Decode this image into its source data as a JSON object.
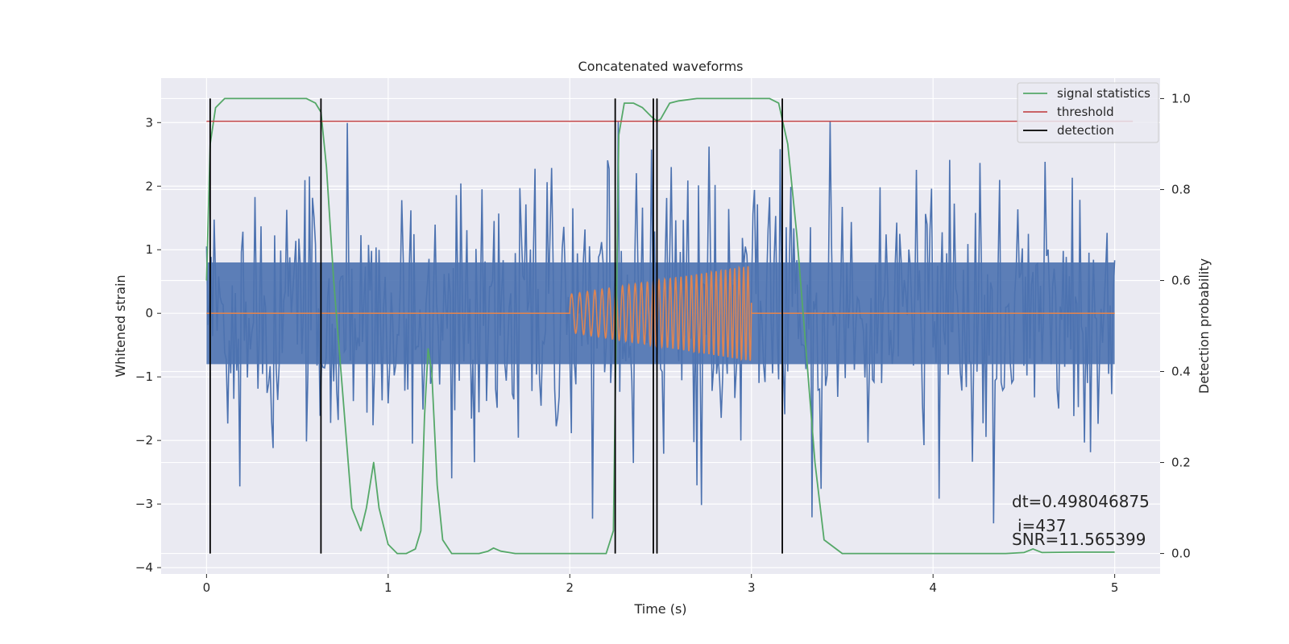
{
  "chart_data": {
    "type": "line",
    "title": "Concatenated waveforms",
    "xlabel": "Time (s)",
    "ylabel": "Whitened strain",
    "y2label": "Detection probability",
    "xlim": [
      -0.25,
      5.25
    ],
    "ylim": [
      -4.1,
      3.7
    ],
    "y2lim": [
      -0.045,
      1.045
    ],
    "xticks": [
      0,
      1,
      2,
      3,
      4,
      5
    ],
    "yticks": [
      -4,
      -3,
      -2,
      -1,
      0,
      1,
      2,
      3
    ],
    "y2ticks": [
      0.0,
      0.2,
      0.4,
      0.6,
      0.8,
      1.0
    ],
    "grid": true,
    "legend_position": "top-right",
    "colors": {
      "background": "#eaeaf2",
      "strain": "#4c72b0",
      "injection": "#dd8452",
      "statistics": "#55a868",
      "threshold": "#c44e52",
      "detection": "#000000"
    },
    "series": [
      {
        "name": "signal statistics",
        "axis": "right",
        "x": [
          0.0,
          0.02,
          0.05,
          0.1,
          0.2,
          0.4,
          0.55,
          0.6,
          0.63,
          0.66,
          0.7,
          0.75,
          0.8,
          0.85,
          0.88,
          0.92,
          0.95,
          1.0,
          1.05,
          1.1,
          1.15,
          1.18,
          1.2,
          1.22,
          1.24,
          1.27,
          1.3,
          1.35,
          1.4,
          1.5,
          1.55,
          1.58,
          1.62,
          1.7,
          1.9,
          2.1,
          2.2,
          2.24,
          2.27,
          2.3,
          2.35,
          2.4,
          2.45,
          2.48,
          2.5,
          2.55,
          2.6,
          2.7,
          2.8,
          2.9,
          3.0,
          3.1,
          3.15,
          3.2,
          3.25,
          3.3,
          3.35,
          3.4,
          3.5,
          3.7,
          4.0,
          4.2,
          4.4,
          4.5,
          4.55,
          4.6,
          4.8,
          5.0
        ],
        "values": [
          0.6,
          0.9,
          0.98,
          1.0,
          1.0,
          1.0,
          1.0,
          0.99,
          0.97,
          0.85,
          0.6,
          0.35,
          0.1,
          0.05,
          0.1,
          0.2,
          0.1,
          0.02,
          0.0,
          0.0,
          0.01,
          0.05,
          0.3,
          0.45,
          0.4,
          0.15,
          0.03,
          0.0,
          0.0,
          0.0,
          0.005,
          0.012,
          0.005,
          0.0,
          0.0,
          0.0,
          0.0,
          0.05,
          0.92,
          0.99,
          0.99,
          0.98,
          0.96,
          0.95,
          0.955,
          0.99,
          0.995,
          1.0,
          1.0,
          1.0,
          1.0,
          1.0,
          0.99,
          0.9,
          0.7,
          0.45,
          0.2,
          0.03,
          0.0,
          0.0,
          0.0,
          0.0,
          0.0,
          0.002,
          0.01,
          0.002,
          0.003,
          0.003
        ]
      },
      {
        "name": "threshold",
        "axis": "right",
        "x": [
          0.0,
          5.1
        ],
        "values": [
          0.95,
          0.95
        ]
      },
      {
        "name": "detection",
        "axis": "vertical",
        "x": [
          0.02,
          0.63,
          2.25,
          2.46,
          2.48,
          3.17
        ]
      }
    ],
    "strain_series": {
      "axis": "left",
      "x_range": [
        0.0,
        5.0
      ],
      "amplitude_envelope": 2.6,
      "samples": 600
    },
    "injection_series": {
      "axis": "left",
      "x_range": [
        2.0,
        3.0
      ],
      "amplitude": [
        0.3,
        0.75
      ],
      "frequency_hz": [
        22,
        42
      ]
    },
    "annotations": [
      "dt=0.498046875",
      "i=437",
      "SNR=11.565399"
    ]
  }
}
